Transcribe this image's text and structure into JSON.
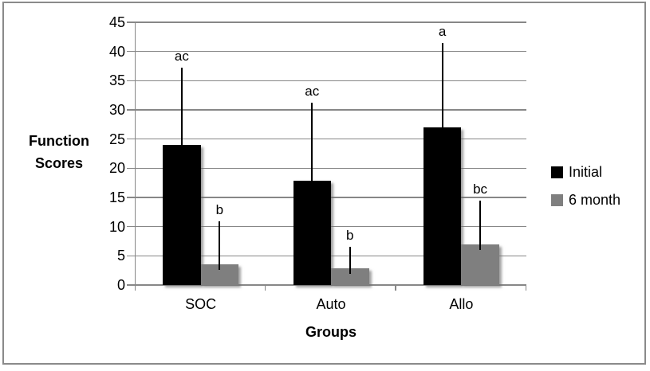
{
  "chart_data": {
    "type": "bar",
    "title": "",
    "categories": [
      "SOC",
      "Auto",
      "Allo"
    ],
    "series": [
      {
        "name": "Initial",
        "color": "#000000",
        "values": [
          24,
          17.8,
          27
        ],
        "error_plus": [
          13.2,
          13.4,
          14.4
        ],
        "sig_labels": [
          "ac",
          "ac",
          "a"
        ]
      },
      {
        "name": "6 month",
        "color": "#7f7f7f",
        "values": [
          3.5,
          2.8,
          7
        ],
        "error_plus": [
          7.4,
          3.7,
          7.5
        ],
        "sig_labels": [
          "b",
          "b",
          "bc"
        ]
      }
    ],
    "ylabel": "Function Scores",
    "ylabel_lines": [
      "Function",
      "Scores"
    ],
    "xlabel": "Groups",
    "ylim": [
      0,
      45
    ],
    "yticks": [
      0,
      5,
      10,
      15,
      20,
      25,
      30,
      35,
      40,
      45
    ],
    "grid": true,
    "legend": {
      "position": "right",
      "entries": [
        "Initial",
        "6 month"
      ]
    },
    "colors": {
      "bar_initial": "#000000",
      "bar_6month": "#7f7f7f",
      "gridline": "#878787",
      "axis": "#878787",
      "error_bar": "#000000",
      "frame_border": "#8a8a8a",
      "background": "#ffffff",
      "text": "#000000"
    }
  }
}
